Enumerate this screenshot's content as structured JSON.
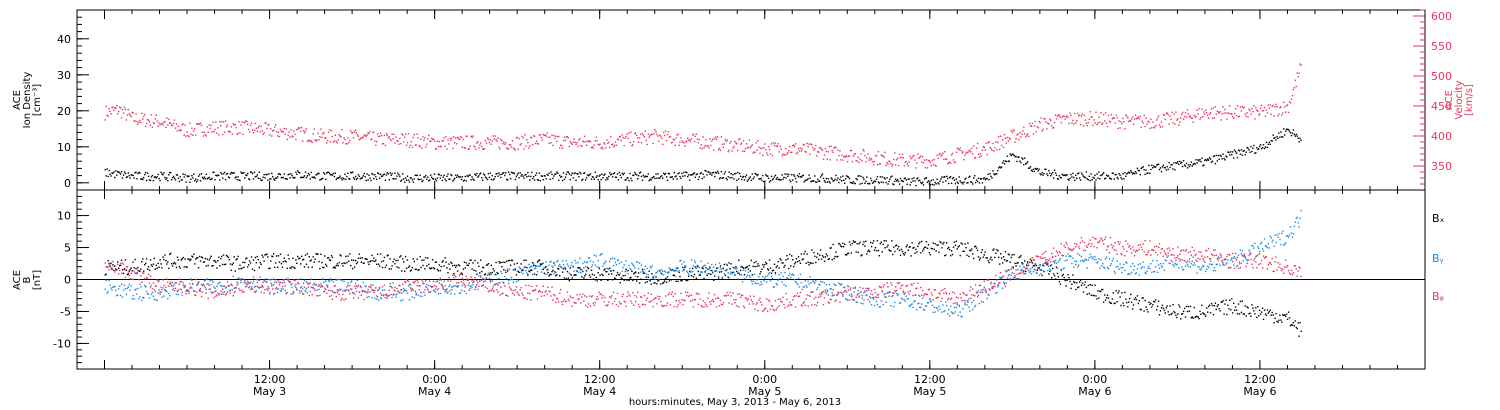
{
  "chart_data": [
    {
      "id": "top",
      "type": "scatter",
      "title": "",
      "ylabel_lines": [
        "ACE",
        "Ion Density",
        "[cm⁻³]"
      ],
      "y2label_lines": [
        "ACE",
        "Velocity",
        "[km/s]"
      ],
      "ylim": [
        -2,
        48
      ],
      "y2lim": [
        310,
        610
      ],
      "yticks": [
        0,
        10,
        20,
        30,
        40
      ],
      "y2ticks": [
        350,
        400,
        450,
        500,
        550,
        600
      ],
      "series": [
        {
          "name": "",
          "axis": "left",
          "color": "#000000",
          "x": [
            0,
            2,
            4,
            6,
            8,
            10,
            12,
            14,
            16,
            18,
            20,
            22,
            24,
            26,
            28,
            30,
            32,
            34,
            36,
            38,
            40,
            42,
            44,
            46,
            48,
            50,
            52,
            54,
            56,
            57,
            58,
            60,
            62,
            64,
            66,
            68,
            70,
            72,
            74,
            76,
            78,
            80,
            82,
            84,
            86,
            87
          ],
          "y": [
            3,
            2,
            2,
            1.5,
            2,
            2,
            2,
            2.5,
            2,
            2,
            2,
            1.5,
            1.5,
            1.5,
            2,
            2,
            2,
            2,
            2,
            2,
            2,
            2,
            2.5,
            2,
            1.5,
            1.5,
            1.5,
            1,
            1,
            1,
            0.5,
            0.5,
            1,
            1,
            8,
            3,
            2,
            2,
            2,
            4,
            5,
            6,
            8,
            10,
            15,
            12
          ]
        },
        {
          "name": "",
          "axis": "right",
          "color": "#e8365d",
          "x": [
            0,
            1,
            2,
            4,
            6,
            8,
            10,
            12,
            14,
            16,
            18,
            20,
            22,
            24,
            26,
            28,
            30,
            32,
            34,
            36,
            38,
            40,
            42,
            44,
            46,
            48,
            50,
            52,
            54,
            56,
            58,
            60,
            62,
            64,
            66,
            68,
            70,
            72,
            74,
            76,
            78,
            80,
            82,
            84,
            86,
            87
          ],
          "y": [
            440,
            445,
            430,
            425,
            410,
            415,
            415,
            410,
            405,
            400,
            400,
            395,
            395,
            390,
            390,
            390,
            390,
            395,
            390,
            390,
            395,
            400,
            395,
            390,
            385,
            380,
            380,
            375,
            370,
            365,
            360,
            360,
            370,
            380,
            400,
            420,
            430,
            430,
            425,
            425,
            430,
            440,
            440,
            440,
            450,
            520
          ]
        }
      ]
    },
    {
      "id": "bottom",
      "type": "scatter",
      "title": "",
      "ylabel_lines": [
        "ACE",
        "B",
        "[nT]"
      ],
      "ylim": [
        -14,
        14
      ],
      "yticks": [
        -10,
        -5,
        0,
        5,
        10
      ],
      "zero_line": true,
      "series": [
        {
          "name": "Bₓ",
          "color": "#000000",
          "x": [
            0,
            2,
            4,
            6,
            8,
            10,
            12,
            14,
            16,
            18,
            20,
            22,
            24,
            26,
            28,
            30,
            32,
            34,
            36,
            38,
            40,
            42,
            44,
            46,
            48,
            50,
            52,
            54,
            56,
            58,
            60,
            62,
            64,
            66,
            68,
            70,
            72,
            74,
            76,
            78,
            80,
            82,
            84,
            86,
            87
          ],
          "y": [
            2,
            2,
            3,
            3,
            3,
            2.5,
            3,
            3,
            3,
            3,
            3,
            2.5,
            2.5,
            2,
            2,
            2,
            2,
            1,
            1,
            0.5,
            0.5,
            1,
            1,
            2,
            2,
            3,
            4,
            5,
            5,
            5,
            5,
            5,
            4,
            3,
            2,
            0,
            -2,
            -3,
            -4,
            -5,
            -5,
            -4,
            -5,
            -6,
            -8
          ]
        },
        {
          "name": "Bᵧ",
          "color": "#1e88e5",
          "x": [
            0,
            2,
            4,
            6,
            8,
            10,
            12,
            14,
            16,
            18,
            20,
            22,
            24,
            26,
            28,
            30,
            32,
            34,
            36,
            38,
            40,
            42,
            44,
            46,
            48,
            50,
            52,
            54,
            56,
            58,
            60,
            62,
            64,
            66,
            68,
            70,
            72,
            74,
            76,
            78,
            80,
            82,
            84,
            86,
            87
          ],
          "y": [
            -1,
            -2,
            -2,
            -1,
            -1,
            0,
            -1,
            -1,
            -1,
            -1,
            -2,
            -2,
            -1,
            -1,
            0,
            1,
            2,
            2,
            3,
            2,
            1,
            2,
            2,
            1,
            0,
            0,
            -1,
            -2,
            -3,
            -3,
            -4,
            -5,
            -2,
            1,
            2,
            3,
            3,
            2,
            2,
            3,
            2,
            3,
            5,
            7,
            10
          ]
        },
        {
          "name": "Bᵩ",
          "color": "#e8365d",
          "x": [
            0,
            2,
            4,
            6,
            8,
            10,
            12,
            14,
            16,
            18,
            20,
            22,
            24,
            26,
            28,
            30,
            32,
            34,
            36,
            38,
            40,
            42,
            44,
            46,
            48,
            50,
            52,
            54,
            56,
            58,
            60,
            62,
            64,
            66,
            68,
            70,
            72,
            74,
            76,
            78,
            80,
            82,
            84,
            86,
            87
          ],
          "y": [
            3,
            1,
            -1,
            -1,
            -2,
            -1,
            -1,
            -1,
            -2,
            -2,
            -2,
            -1,
            -1,
            0,
            -1,
            -2,
            -2,
            -3,
            -3,
            -3,
            -3,
            -3,
            -3,
            -3,
            -4,
            -3,
            -3,
            -2,
            -2,
            -1,
            -2,
            -3,
            -1,
            1,
            3,
            5,
            6,
            5,
            5,
            4,
            4,
            3,
            3,
            2,
            1
          ]
        }
      ]
    }
  ],
  "x_axis": {
    "range_hours": [
      -2,
      96
    ],
    "tick_hours": [
      0,
      12,
      24,
      36,
      48,
      60,
      72,
      84,
      96
    ],
    "tick_labels": [
      [
        "12:00",
        "May  3"
      ],
      [
        "0:00",
        "May  4"
      ],
      [
        "12:00",
        "May  4"
      ],
      [
        "0:00",
        "May  5"
      ],
      [
        "12:00",
        "May  5"
      ],
      [
        "0:00",
        "May  6"
      ],
      [
        "12:00",
        "May  6"
      ]
    ],
    "label_hours": [
      12,
      24,
      36,
      48,
      60,
      72,
      84
    ],
    "title": "hours:minutes,  May  3, 2013 - May  6, 2013"
  },
  "legend": [
    "Bₓ",
    "Bᵧ",
    "Bᵩ"
  ]
}
